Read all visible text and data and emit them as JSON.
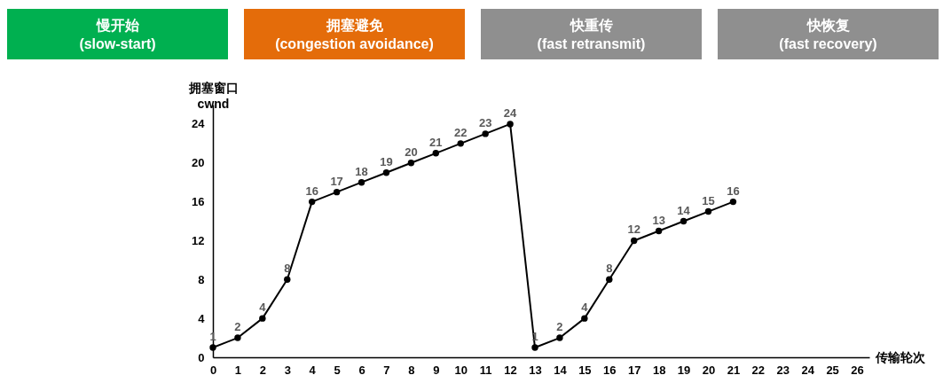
{
  "chart_data": {
    "type": "line",
    "xlabel": "传输轮次",
    "ylabel": "拥塞窗口\ncwnd",
    "x": [
      0,
      1,
      2,
      3,
      4,
      5,
      6,
      7,
      8,
      9,
      10,
      11,
      12,
      13,
      14,
      15,
      16,
      17,
      18,
      19,
      20,
      21
    ],
    "series": [
      {
        "color": "#000000",
        "values": [
          1,
          2,
          4,
          8,
          16,
          17,
          18,
          19,
          20,
          21,
          22,
          23,
          24,
          1,
          2,
          4,
          8,
          12,
          13,
          14,
          15,
          16
        ]
      }
    ],
    "xlim": [
      0,
      26.5
    ],
    "xticks": [
      0,
      1,
      2,
      3,
      4,
      5,
      6,
      7,
      8,
      9,
      10,
      11,
      12,
      13,
      14,
      15,
      16,
      17,
      18,
      19,
      20,
      21,
      22,
      23,
      24,
      25,
      26
    ],
    "ylim": [
      0,
      26
    ],
    "yticks": [
      0,
      4,
      8,
      12,
      16,
      20,
      24
    ],
    "data_labels": true,
    "marker": "circle",
    "grid": false,
    "annotations": [
      "慢开始\n(slow-start)",
      "拥塞避免\n(congestion avoidance)",
      "快重传\n(fast retransmit)",
      "快恢复\n(fast recovery)"
    ]
  }
}
